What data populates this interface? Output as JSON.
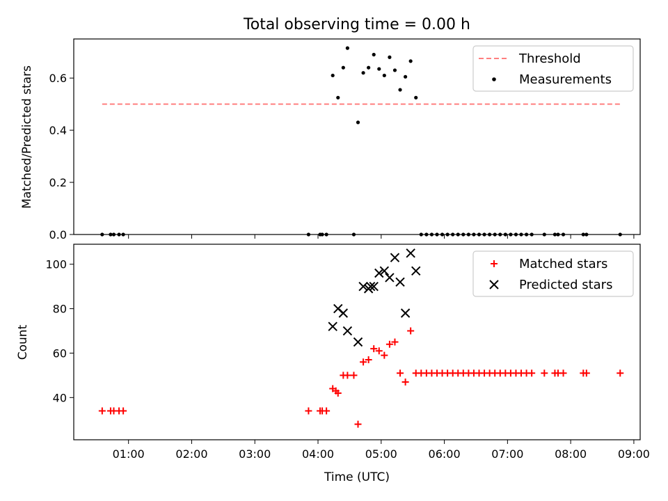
{
  "chart_data": [
    {
      "type": "scatter",
      "title": "Total observing time = 0.00 h",
      "ylabel": "Matched/Predicted stars",
      "xlabel": "",
      "ylim": [
        0,
        0.75
      ],
      "xlim": [
        "00:08",
        "09:06"
      ],
      "yticks": [
        "0.0",
        "0.2",
        "0.4",
        "0.6"
      ],
      "ytick_values": [
        0.0,
        0.2,
        0.4,
        0.6
      ],
      "legend": {
        "position": "top-right",
        "entries": [
          "Threshold",
          "Measurements"
        ]
      },
      "threshold": {
        "name": "Threshold",
        "value": 0.5,
        "x_range": [
          "00:35",
          "08:47"
        ],
        "color": "#ff7f7f",
        "style": "dashed"
      },
      "series": [
        {
          "name": "Measurements",
          "color": "#000000",
          "marker": "dot",
          "points": [
            [
              "00:35",
              0
            ],
            [
              "00:43",
              0
            ],
            [
              "00:46",
              0
            ],
            [
              "00:51",
              0
            ],
            [
              "00:55",
              0
            ],
            [
              "03:51",
              0
            ],
            [
              "04:02",
              0
            ],
            [
              "04:04",
              0
            ],
            [
              "04:08",
              0
            ],
            [
              "04:14",
              0.61
            ],
            [
              "04:19",
              0.525
            ],
            [
              "04:24",
              0.64
            ],
            [
              "04:28",
              0.715
            ],
            [
              "04:34",
              0
            ],
            [
              "04:38",
              0.43
            ],
            [
              "04:43",
              0.62
            ],
            [
              "04:48",
              0.64
            ],
            [
              "04:53",
              0.69
            ],
            [
              "04:58",
              0.635
            ],
            [
              "05:03",
              0.61
            ],
            [
              "05:08",
              0.68
            ],
            [
              "05:13",
              0.63
            ],
            [
              "05:18",
              0.555
            ],
            [
              "05:23",
              0.605
            ],
            [
              "05:28",
              0.665
            ],
            [
              "05:33",
              0.525
            ],
            [
              "05:38",
              0
            ],
            [
              "05:43",
              0
            ],
            [
              "05:48",
              0
            ],
            [
              "05:53",
              0
            ],
            [
              "05:58",
              0
            ],
            [
              "06:03",
              0
            ],
            [
              "06:08",
              0
            ],
            [
              "06:13",
              0
            ],
            [
              "06:18",
              0
            ],
            [
              "06:23",
              0
            ],
            [
              "06:28",
              0
            ],
            [
              "06:33",
              0
            ],
            [
              "06:38",
              0
            ],
            [
              "06:43",
              0
            ],
            [
              "06:48",
              0
            ],
            [
              "06:53",
              0
            ],
            [
              "06:58",
              0
            ],
            [
              "07:03",
              0
            ],
            [
              "07:08",
              0
            ],
            [
              "07:13",
              0
            ],
            [
              "07:18",
              0
            ],
            [
              "07:23",
              0
            ],
            [
              "07:35",
              0
            ],
            [
              "07:45",
              0
            ],
            [
              "07:48",
              0
            ],
            [
              "07:53",
              0
            ],
            [
              "08:12",
              0
            ],
            [
              "08:15",
              0
            ],
            [
              "08:47",
              0
            ]
          ]
        }
      ]
    },
    {
      "type": "scatter",
      "title": "",
      "xlabel": "Time (UTC)",
      "ylabel": "Count",
      "ylim": [
        21,
        109
      ],
      "xlim": [
        "00:08",
        "09:06"
      ],
      "yticks": [
        "40",
        "60",
        "80",
        "100"
      ],
      "ytick_values": [
        40,
        60,
        80,
        100
      ],
      "xticks": [
        "01:00",
        "02:00",
        "03:00",
        "04:00",
        "05:00",
        "06:00",
        "07:00",
        "08:00",
        "09:00"
      ],
      "legend": {
        "position": "top-right",
        "entries": [
          "Matched stars",
          "Predicted stars"
        ]
      },
      "series": [
        {
          "name": "Matched stars",
          "color": "#ff0000",
          "marker": "plus",
          "points": [
            [
              "00:35",
              34
            ],
            [
              "00:43",
              34
            ],
            [
              "00:46",
              34
            ],
            [
              "00:51",
              34
            ],
            [
              "00:55",
              34
            ],
            [
              "03:51",
              34
            ],
            [
              "04:02",
              34
            ],
            [
              "04:04",
              34
            ],
            [
              "04:08",
              34
            ],
            [
              "04:14",
              44
            ],
            [
              "04:17",
              43
            ],
            [
              "04:19",
              42
            ],
            [
              "04:24",
              50
            ],
            [
              "04:28",
              50
            ],
            [
              "04:34",
              50
            ],
            [
              "04:38",
              28
            ],
            [
              "04:43",
              56
            ],
            [
              "04:48",
              57
            ],
            [
              "04:53",
              62
            ],
            [
              "04:58",
              61
            ],
            [
              "05:03",
              59
            ],
            [
              "05:08",
              64
            ],
            [
              "05:13",
              65
            ],
            [
              "05:18",
              51
            ],
            [
              "05:23",
              47
            ],
            [
              "05:28",
              70
            ],
            [
              "05:33",
              51
            ],
            [
              "05:38",
              51
            ],
            [
              "05:43",
              51
            ],
            [
              "05:48",
              51
            ],
            [
              "05:53",
              51
            ],
            [
              "05:58",
              51
            ],
            [
              "06:03",
              51
            ],
            [
              "06:08",
              51
            ],
            [
              "06:13",
              51
            ],
            [
              "06:18",
              51
            ],
            [
              "06:23",
              51
            ],
            [
              "06:28",
              51
            ],
            [
              "06:33",
              51
            ],
            [
              "06:38",
              51
            ],
            [
              "06:43",
              51
            ],
            [
              "06:48",
              51
            ],
            [
              "06:53",
              51
            ],
            [
              "06:58",
              51
            ],
            [
              "07:03",
              51
            ],
            [
              "07:08",
              51
            ],
            [
              "07:13",
              51
            ],
            [
              "07:18",
              51
            ],
            [
              "07:23",
              51
            ],
            [
              "07:35",
              51
            ],
            [
              "07:45",
              51
            ],
            [
              "07:48",
              51
            ],
            [
              "07:53",
              51
            ],
            [
              "08:12",
              51
            ],
            [
              "08:15",
              51
            ],
            [
              "08:47",
              51
            ]
          ]
        },
        {
          "name": "Predicted stars",
          "color": "#000000",
          "marker": "x",
          "points": [
            [
              "04:14",
              72
            ],
            [
              "04:19",
              80
            ],
            [
              "04:24",
              78
            ],
            [
              "04:28",
              70
            ],
            [
              "04:38",
              65
            ],
            [
              "04:43",
              90
            ],
            [
              "04:48",
              89
            ],
            [
              "04:50",
              90
            ],
            [
              "04:53",
              90
            ],
            [
              "04:58",
              96
            ],
            [
              "05:03",
              97
            ],
            [
              "05:08",
              94
            ],
            [
              "05:13",
              103
            ],
            [
              "05:18",
              92
            ],
            [
              "05:23",
              78
            ],
            [
              "05:28",
              105
            ],
            [
              "05:33",
              97
            ]
          ]
        }
      ]
    }
  ]
}
